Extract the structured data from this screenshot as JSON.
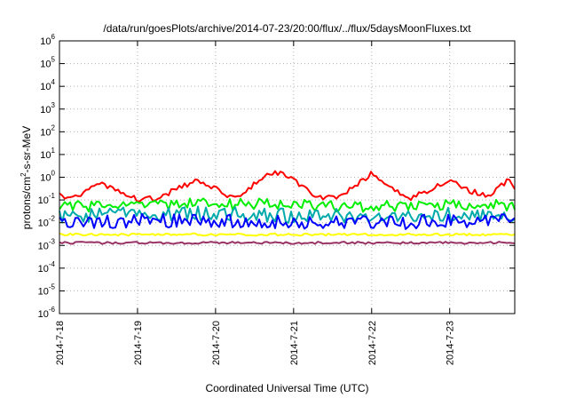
{
  "chart_data": {
    "type": "line",
    "title": "/data/run/goesPlots/archive/2014-07-23/20:00/flux/../flux/5daysMoonFluxes.txt",
    "xlabel": "Coordinated Universal Time (UTC)",
    "ylabel": {
      "prefix": "protons/cm",
      "sup": "2",
      "suffix": "-s-sr-MeV"
    },
    "yscale": "log",
    "ylim_exp": [
      -6,
      6
    ],
    "y_ticks": [
      {
        "base": "10",
        "exp": "-6"
      },
      {
        "base": "10",
        "exp": "-5"
      },
      {
        "base": "10",
        "exp": "-4"
      },
      {
        "base": "10",
        "exp": "-3"
      },
      {
        "base": "10",
        "exp": "-2"
      },
      {
        "base": "10",
        "exp": "-1"
      },
      {
        "base": "10",
        "exp": "0"
      },
      {
        "base": "10",
        "exp": "1"
      },
      {
        "base": "10",
        "exp": "2"
      },
      {
        "base": "10",
        "exp": "3"
      },
      {
        "base": "10",
        "exp": "4"
      },
      {
        "base": "10",
        "exp": "5"
      },
      {
        "base": "10",
        "exp": "6"
      }
    ],
    "x_ticks": [
      "2014-7-18",
      "2014-7-19",
      "2014-7-20",
      "2014-7-21",
      "2014-7-22",
      "2014-7-23"
    ],
    "x_range": [
      "2014-07-18 00:00",
      "2014-07-23 20:00"
    ],
    "grid": true,
    "series": [
      {
        "color": "#ff0000",
        "x": [
          "2014-07-18 00:00",
          "2014-07-18 06:00",
          "2014-07-18 12:00",
          "2014-07-18 18:00",
          "2014-07-19 00:00",
          "2014-07-19 06:00",
          "2014-07-19 12:00",
          "2014-07-19 18:00",
          "2014-07-20 00:00",
          "2014-07-20 06:00",
          "2014-07-20 12:00",
          "2014-07-20 18:00",
          "2014-07-21 00:00",
          "2014-07-21 06:00",
          "2014-07-21 12:00",
          "2014-07-21 18:00",
          "2014-07-22 00:00",
          "2014-07-22 06:00",
          "2014-07-22 12:00",
          "2014-07-22 18:00",
          "2014-07-23 00:00",
          "2014-07-23 06:00",
          "2014-07-23 12:00",
          "2014-07-23 18:00",
          "2014-07-23 20:00"
        ],
        "y": [
          0.15,
          0.15,
          0.5,
          0.3,
          0.1,
          0.12,
          0.3,
          0.7,
          0.3,
          0.12,
          0.5,
          1.8,
          0.8,
          0.15,
          0.12,
          0.3,
          1.5,
          0.3,
          0.12,
          0.3,
          0.8,
          0.25,
          0.15,
          0.8,
          0.3
        ]
      },
      {
        "color": "#00ee00",
        "x": [
          "2014-07-18 00:00",
          "2014-07-19 00:00",
          "2014-07-20 00:00",
          "2014-07-21 00:00",
          "2014-07-22 00:00",
          "2014-07-23 00:00",
          "2014-07-23 20:00"
        ],
        "y": [
          0.05,
          0.06,
          0.07,
          0.06,
          0.05,
          0.06,
          0.06
        ]
      },
      {
        "color": "#00aaaa",
        "x": [
          "2014-07-18 00:00",
          "2014-07-19 00:00",
          "2014-07-20 00:00",
          "2014-07-21 00:00",
          "2014-07-22 00:00",
          "2014-07-23 00:00",
          "2014-07-23 20:00"
        ],
        "y": [
          0.02,
          0.025,
          0.025,
          0.02,
          0.02,
          0.025,
          0.02
        ]
      },
      {
        "color": "#0000ff",
        "x": [
          "2014-07-18 00:00",
          "2014-07-19 00:00",
          "2014-07-20 00:00",
          "2014-07-21 00:00",
          "2014-07-22 00:00",
          "2014-07-23 00:00",
          "2014-07-23 20:00"
        ],
        "y": [
          0.01,
          0.012,
          0.012,
          0.01,
          0.01,
          0.012,
          0.012
        ]
      },
      {
        "color": "#ffff00",
        "x": [
          "2014-07-18 00:00",
          "2014-07-19 00:00",
          "2014-07-20 00:00",
          "2014-07-21 00:00",
          "2014-07-22 00:00",
          "2014-07-23 00:00",
          "2014-07-23 20:00"
        ],
        "y": [
          0.003,
          0.003,
          0.003,
          0.003,
          0.003,
          0.003,
          0.003
        ]
      },
      {
        "color": "#993366",
        "x": [
          "2014-07-18 00:00",
          "2014-07-19 00:00",
          "2014-07-20 00:00",
          "2014-07-21 00:00",
          "2014-07-22 00:00",
          "2014-07-23 00:00",
          "2014-07-23 20:00"
        ],
        "y": [
          0.0013,
          0.0013,
          0.0013,
          0.0013,
          0.0013,
          0.0013,
          0.0013
        ]
      }
    ]
  }
}
